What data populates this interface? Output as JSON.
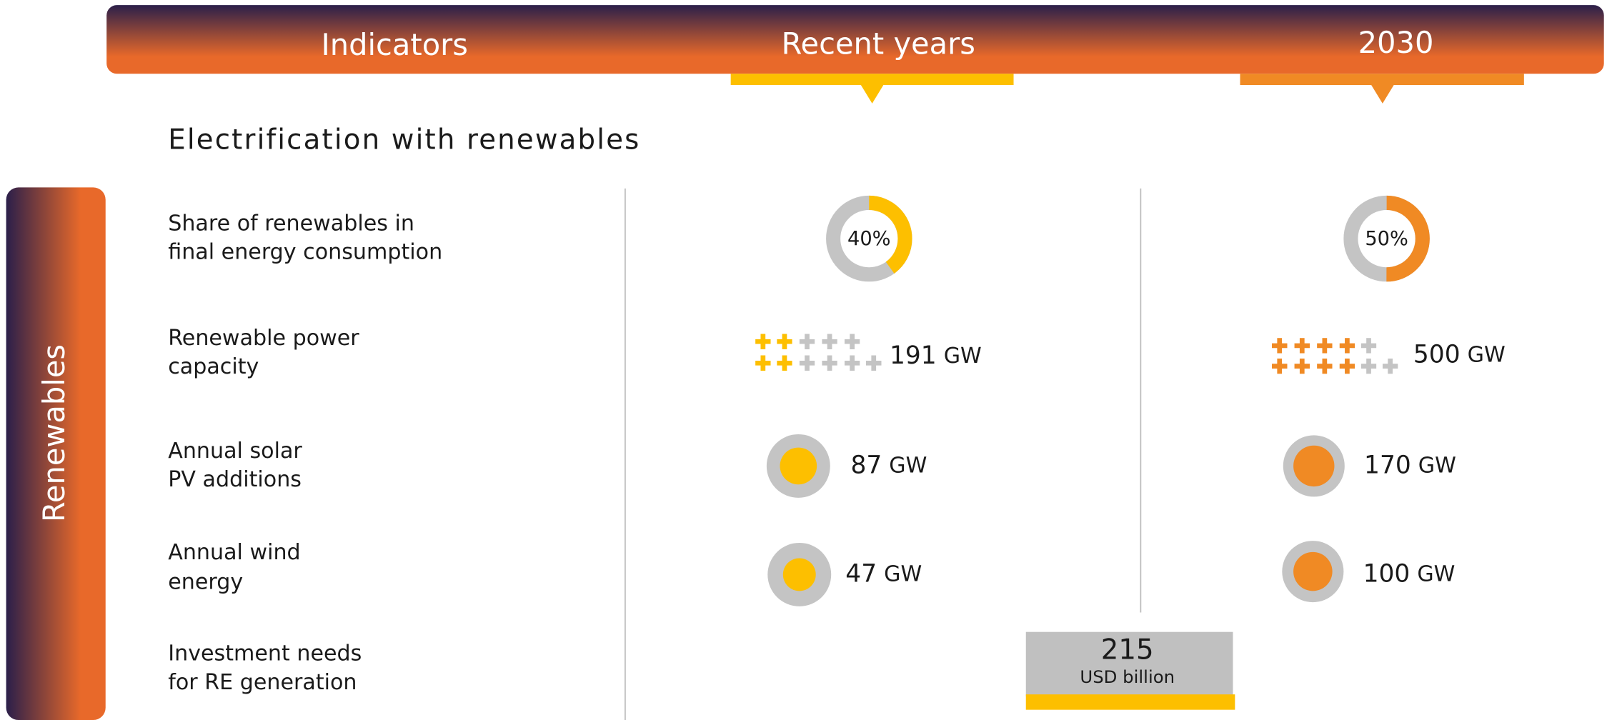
{
  "header": {
    "columns": [
      "Indicators",
      "Recent years",
      "2030"
    ]
  },
  "section": {
    "title": "Electrification with renewables",
    "side_label": "Renewables"
  },
  "rows": [
    {
      "label": [
        "Share of renewables in",
        "final energy consumption"
      ],
      "recent": {
        "value": 40,
        "label": "40%"
      },
      "target": {
        "value": 50,
        "label": "50%"
      }
    },
    {
      "label": [
        "Renewable power",
        "capacity"
      ],
      "unit": "GW",
      "recent": 191,
      "target": 500
    },
    {
      "label": [
        "Annual solar",
        "PV additions"
      ],
      "unit": "GW",
      "recent": 87,
      "target": 170
    },
    {
      "label": [
        "Annual wind",
        "energy"
      ],
      "unit": "GW",
      "recent": 47,
      "target": 100
    }
  ],
  "investment": {
    "label": [
      "Investment needs",
      "for RE generation"
    ],
    "value": 215,
    "unit": "USD billion"
  }
}
